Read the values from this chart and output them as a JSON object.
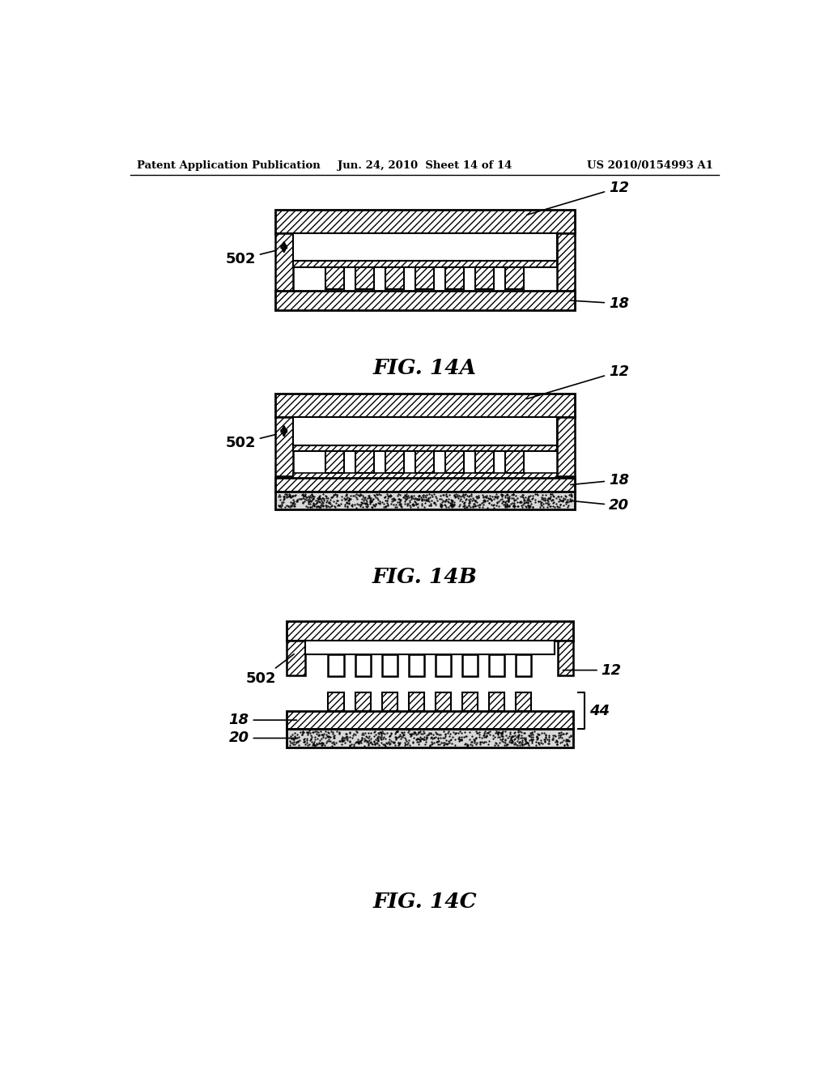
{
  "header_left": "Patent Application Publication",
  "header_mid": "Jun. 24, 2010  Sheet 14 of 14",
  "header_right": "US 2010/0154993 A1",
  "bg_color": "#ffffff",
  "hatch_color": "#000000",
  "line_color": "#000000",
  "fig14a_label": "FIG. 14A",
  "fig14b_label": "FIG. 14B",
  "fig14c_label": "FIG. 14C",
  "label_12": "12",
  "label_18": "18",
  "label_20": "20",
  "label_44": "44",
  "label_502": "502"
}
